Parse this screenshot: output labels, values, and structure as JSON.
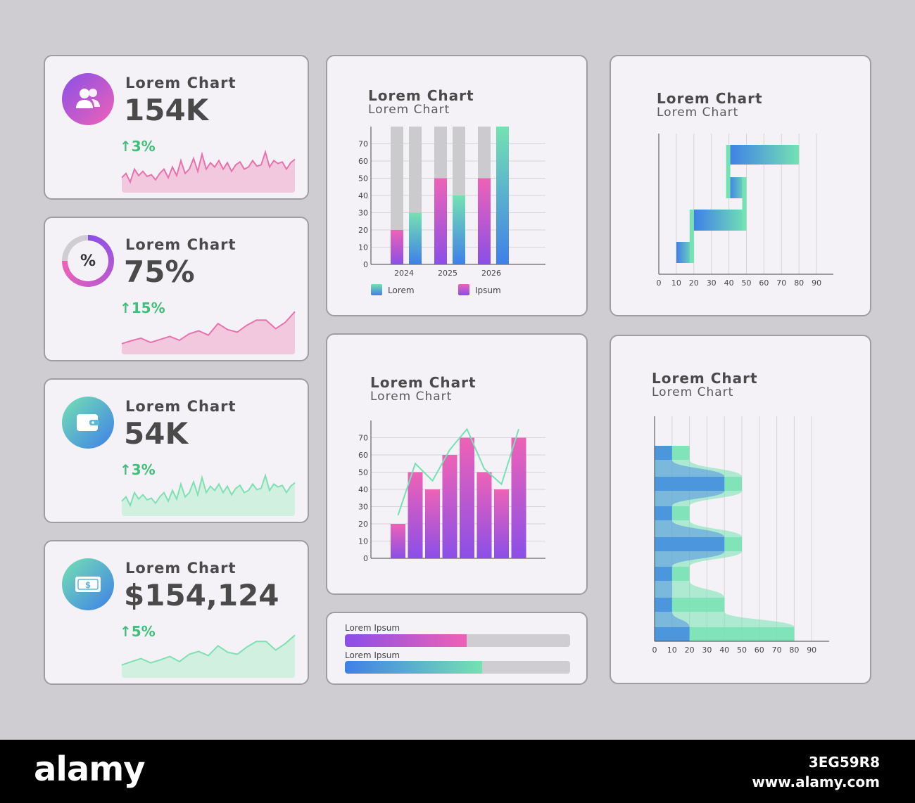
{
  "kpis": [
    {
      "title": "Lorem Chart",
      "value": "154K",
      "delta": "3%",
      "icon": "users-icon",
      "spark": [
        0.35,
        0.45,
        0.25,
        0.55,
        0.4,
        0.5,
        0.38,
        0.42,
        0.3,
        0.45,
        0.55,
        0.35,
        0.6,
        0.4,
        0.75,
        0.45,
        0.55,
        0.8,
        0.5,
        0.9,
        0.55,
        0.7,
        0.6,
        0.75,
        0.55,
        0.7,
        0.5,
        0.65,
        0.72,
        0.55,
        0.6,
        0.75,
        0.62,
        0.65,
        0.95,
        0.6,
        0.75,
        0.68,
        0.72,
        0.55,
        0.7,
        0.78
      ]
    },
    {
      "title": "Lorem Chart",
      "value": "75%",
      "delta": "15%",
      "icon": "percent-icon",
      "spark": [
        0.25,
        0.32,
        0.38,
        0.28,
        0.35,
        0.42,
        0.33,
        0.48,
        0.55,
        0.45,
        0.72,
        0.58,
        0.52,
        0.68,
        0.8,
        0.8,
        0.6,
        0.75,
        1.0
      ]
    },
    {
      "title": "Lorem Chart",
      "value": "54K",
      "delta": "3%",
      "icon": "wallet-icon",
      "spark": [
        0.35,
        0.45,
        0.25,
        0.55,
        0.4,
        0.5,
        0.38,
        0.42,
        0.3,
        0.45,
        0.55,
        0.35,
        0.6,
        0.4,
        0.75,
        0.45,
        0.55,
        0.8,
        0.5,
        0.9,
        0.55,
        0.7,
        0.6,
        0.75,
        0.55,
        0.7,
        0.5,
        0.65,
        0.72,
        0.55,
        0.6,
        0.75,
        0.62,
        0.65,
        0.95,
        0.6,
        0.75,
        0.68,
        0.72,
        0.55,
        0.7,
        0.78
      ]
    },
    {
      "title": "Lorem Chart",
      "value": "$154,124",
      "delta": "5%",
      "icon": "money-icon",
      "spark": [
        0.3,
        0.38,
        0.45,
        0.35,
        0.42,
        0.5,
        0.38,
        0.55,
        0.62,
        0.52,
        0.75,
        0.6,
        0.55,
        0.72,
        0.85,
        0.85,
        0.65,
        0.8,
        1.0
      ]
    }
  ],
  "stacked_chart": {
    "title": "Lorem Chart",
    "subtitle": "Lorem Chart"
  },
  "combo_chart": {
    "title": "Lorem Chart",
    "subtitle": "Lorem Chart"
  },
  "gantt_chart": {
    "title": "Lorem Chart",
    "subtitle": "Lorem Chart"
  },
  "wave_chart": {
    "title": "Lorem Chart",
    "subtitle": "Lorem Chart"
  },
  "progress": [
    {
      "label": "Lorem Ipsum",
      "value": 0.54,
      "colors": [
        "#8a4fe8",
        "#ee62b6"
      ]
    },
    {
      "label": "Lorem Ipsum",
      "value": 0.61,
      "colors": [
        "#3f7fe8",
        "#74e2b2"
      ]
    }
  ],
  "footer": {
    "logo": "alamy",
    "image_id": "3EG59R8",
    "url": "www.alamy.com"
  },
  "colors": {
    "pink": "#ee62b6",
    "purple": "#8a4fe8",
    "blue": "#3f7fe8",
    "green": "#74e2b2",
    "deltaGreen": "#3fbf7a"
  },
  "chart_data": [
    {
      "type": "bar",
      "categories": [
        "2024",
        "2025",
        "2026"
      ],
      "ylim": [
        0,
        80
      ],
      "yticks": [
        0,
        10,
        20,
        30,
        40,
        50,
        60,
        70
      ],
      "series": [
        {
          "name": "Lorem",
          "values": [
            20,
            50,
            50
          ]
        },
        {
          "name": "Ipsum",
          "values": [
            30,
            40,
            80
          ]
        }
      ],
      "legend": [
        "Lorem",
        "Ipsum"
      ],
      "legend_position": "bottom"
    },
    {
      "type": "bar",
      "values": [
        20,
        50,
        40,
        60,
        70,
        50,
        40,
        70
      ],
      "line": [
        25,
        55,
        45,
        63,
        75,
        52,
        43,
        75
      ],
      "ylim": [
        0,
        80
      ],
      "yticks": [
        0,
        10,
        20,
        30,
        40,
        50,
        60,
        70
      ]
    },
    {
      "type": "bar",
      "orientation": "horizontal-gantt",
      "xticks": [
        0,
        10,
        20,
        30,
        40,
        50,
        60,
        70,
        80,
        90
      ],
      "tasks": [
        {
          "start": 10,
          "end": 20
        },
        {
          "start": 20,
          "end": 50
        },
        {
          "start": 40,
          "end": 50
        },
        {
          "start": 40,
          "end": 80
        }
      ]
    },
    {
      "type": "area",
      "orientation": "horizontal",
      "xticks": [
        0,
        10,
        20,
        30,
        40,
        50,
        60,
        70,
        80,
        90
      ],
      "series": [
        {
          "name": "blue",
          "values": [
            10,
            40,
            10,
            40,
            10,
            10,
            20
          ]
        },
        {
          "name": "green",
          "values": [
            20,
            50,
            20,
            50,
            20,
            40,
            80
          ]
        }
      ]
    }
  ]
}
